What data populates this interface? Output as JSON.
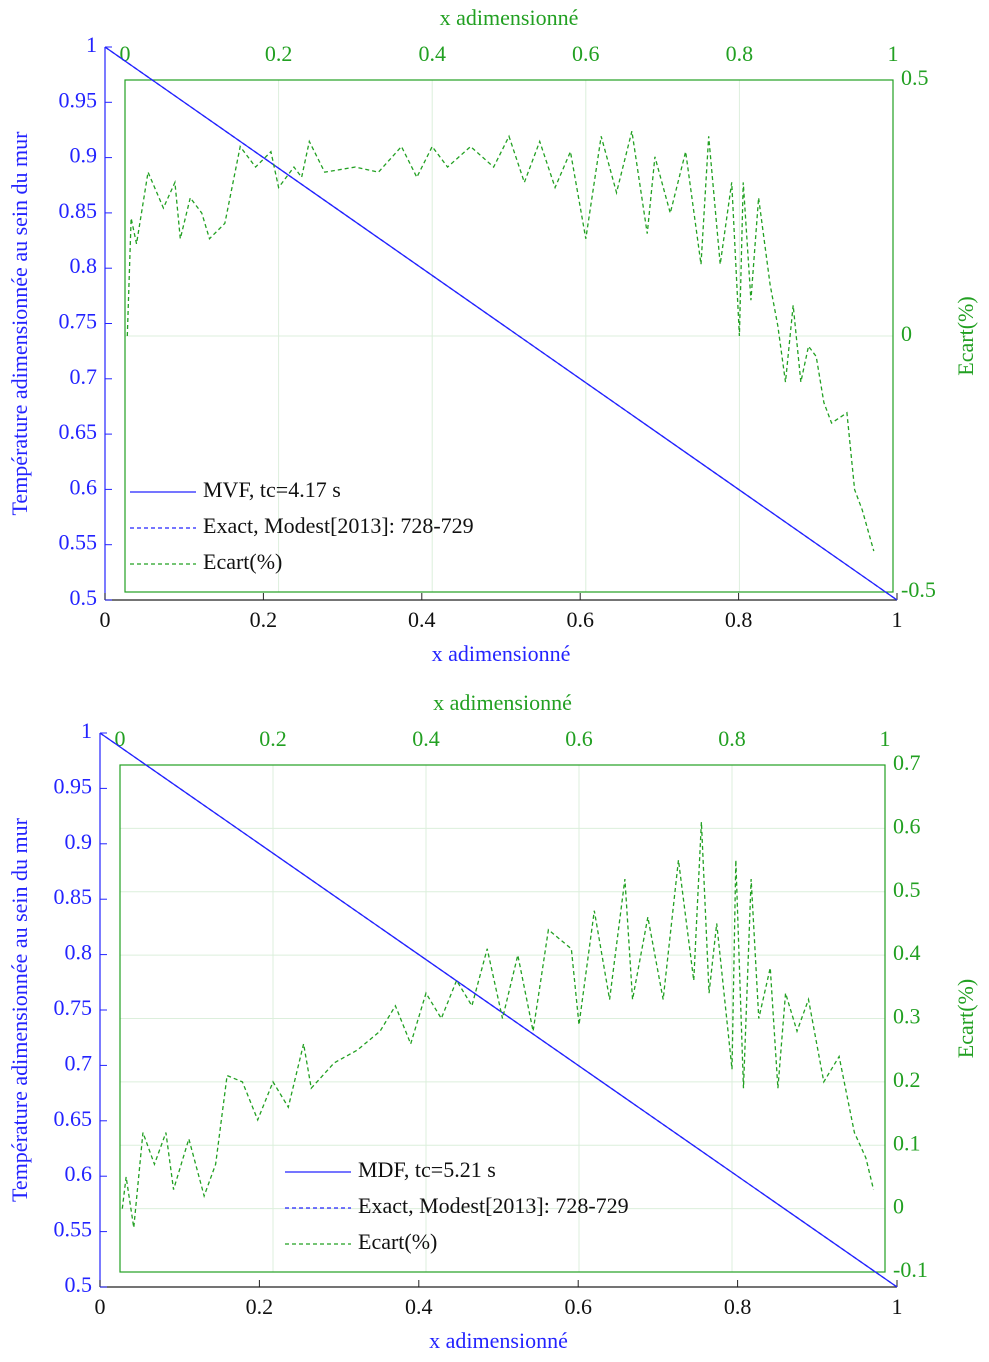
{
  "chart_data": [
    {
      "type": "line",
      "xlabel": "x adimensionné",
      "x2label": "x adimensionné",
      "ylabel": "Température adimensionnée au sein du mur",
      "y2label": "Ecart(%)",
      "xlim": [
        0,
        1
      ],
      "xticks": [
        0,
        0.2,
        0.4,
        0.6,
        0.8,
        1
      ],
      "x2lim": [
        0,
        1
      ],
      "x2ticks": [
        0,
        0.2,
        0.4,
        0.6,
        0.8,
        1
      ],
      "ylim": [
        0.5,
        1
      ],
      "yticks": [
        0.5,
        0.55,
        0.6,
        0.65,
        0.7,
        0.75,
        0.8,
        0.85,
        0.9,
        0.95,
        1
      ],
      "y2lim": [
        -0.5,
        0.5
      ],
      "y2ticks": [
        -0.5,
        0,
        0.5
      ],
      "ycolor": "#2323ff",
      "y2color": "#22a022",
      "grid": true,
      "legend": "lower left",
      "series": [
        {
          "name": "MVF, tc=4.17 s",
          "color": "#2323ff",
          "linestyle": "solid",
          "x": [
            0,
            1
          ],
          "values": [
            1,
            0.5
          ]
        },
        {
          "name": "Exact, Modest[2013]: 728-729",
          "color": "#2323ff",
          "linestyle": "dashed",
          "x": [
            0,
            1
          ],
          "values": [
            1,
            0.5
          ]
        },
        {
          "name": "Ecart(%)",
          "color": "#22a022",
          "linestyle": "dashed",
          "axis": "y2",
          "x": [
            0.003,
            0.008,
            0.015,
            0.03,
            0.05,
            0.065,
            0.072,
            0.085,
            0.1,
            0.11,
            0.13,
            0.15,
            0.17,
            0.19,
            0.2,
            0.22,
            0.23,
            0.24,
            0.26,
            0.3,
            0.33,
            0.36,
            0.38,
            0.4,
            0.42,
            0.45,
            0.48,
            0.5,
            0.52,
            0.54,
            0.56,
            0.58,
            0.6,
            0.62,
            0.64,
            0.66,
            0.68,
            0.69,
            0.71,
            0.73,
            0.75,
            0.76,
            0.775,
            0.79,
            0.8,
            0.805,
            0.815,
            0.825,
            0.84,
            0.85,
            0.86,
            0.87,
            0.88,
            0.89,
            0.9,
            0.91,
            0.92,
            0.94,
            0.95,
            0.96,
            0.975
          ],
          "values": [
            0,
            0.23,
            0.18,
            0.32,
            0.25,
            0.3,
            0.19,
            0.27,
            0.24,
            0.19,
            0.22,
            0.37,
            0.33,
            0.36,
            0.29,
            0.33,
            0.31,
            0.38,
            0.32,
            0.33,
            0.32,
            0.37,
            0.31,
            0.37,
            0.33,
            0.37,
            0.33,
            0.39,
            0.3,
            0.38,
            0.29,
            0.36,
            0.19,
            0.39,
            0.28,
            0.4,
            0.2,
            0.35,
            0.24,
            0.36,
            0.14,
            0.39,
            0.14,
            0.3,
            0,
            0.3,
            0.07,
            0.27,
            0.1,
            0.02,
            -0.09,
            0.06,
            -0.09,
            -0.02,
            -0.04,
            -0.13,
            -0.17,
            -0.15,
            -0.3,
            -0.34,
            -0.42
          ]
        }
      ]
    },
    {
      "type": "line",
      "xlabel": "x adimensionné",
      "x2label": "x adimensionné",
      "ylabel": "Température adimensionnée au sein du mur",
      "y2label": "Ecart(%)",
      "xlim": [
        0,
        1
      ],
      "xticks": [
        0,
        0.2,
        0.4,
        0.6,
        0.8,
        1
      ],
      "x2lim": [
        0,
        1
      ],
      "x2ticks": [
        0,
        0.2,
        0.4,
        0.6,
        0.8,
        1
      ],
      "ylim": [
        0.5,
        1
      ],
      "yticks": [
        0.5,
        0.55,
        0.6,
        0.65,
        0.7,
        0.75,
        0.8,
        0.85,
        0.9,
        0.95,
        1
      ],
      "y2lim": [
        -0.1,
        0.7
      ],
      "y2ticks": [
        -0.1,
        0,
        0.1,
        0.2,
        0.3,
        0.4,
        0.5,
        0.6,
        0.7
      ],
      "ycolor": "#2323ff",
      "y2color": "#22a022",
      "grid": true,
      "legend": "lower center",
      "series": [
        {
          "name": "MDF, tc=5.21 s",
          "color": "#2323ff",
          "linestyle": "solid",
          "x": [
            0,
            1
          ],
          "values": [
            1,
            0.5
          ]
        },
        {
          "name": "Exact, Modest[2013]: 728-729",
          "color": "#2323ff",
          "linestyle": "dashed",
          "x": [
            0,
            1
          ],
          "values": [
            1,
            0.5
          ]
        },
        {
          "name": "Ecart(%)",
          "color": "#22a022",
          "linestyle": "dashed",
          "axis": "y2",
          "x": [
            0.003,
            0.008,
            0.018,
            0.03,
            0.045,
            0.06,
            0.07,
            0.09,
            0.11,
            0.125,
            0.14,
            0.16,
            0.18,
            0.2,
            0.22,
            0.24,
            0.25,
            0.28,
            0.31,
            0.34,
            0.36,
            0.38,
            0.4,
            0.42,
            0.44,
            0.46,
            0.48,
            0.5,
            0.52,
            0.54,
            0.56,
            0.59,
            0.6,
            0.62,
            0.64,
            0.66,
            0.67,
            0.69,
            0.71,
            0.73,
            0.75,
            0.76,
            0.77,
            0.78,
            0.8,
            0.805,
            0.815,
            0.825,
            0.835,
            0.85,
            0.86,
            0.87,
            0.885,
            0.9,
            0.92,
            0.94,
            0.96,
            0.975,
            0.985
          ],
          "values": [
            0,
            0.05,
            -0.03,
            0.12,
            0.07,
            0.12,
            0.03,
            0.11,
            0.02,
            0.07,
            0.21,
            0.2,
            0.14,
            0.2,
            0.16,
            0.26,
            0.19,
            0.23,
            0.25,
            0.28,
            0.32,
            0.26,
            0.34,
            0.3,
            0.36,
            0.32,
            0.41,
            0.3,
            0.4,
            0.28,
            0.44,
            0.41,
            0.29,
            0.47,
            0.33,
            0.52,
            0.33,
            0.46,
            0.33,
            0.55,
            0.36,
            0.61,
            0.34,
            0.45,
            0.22,
            0.55,
            0.19,
            0.52,
            0.3,
            0.38,
            0.19,
            0.34,
            0.28,
            0.33,
            0.2,
            0.24,
            0.12,
            0.08,
            0.03
          ]
        }
      ]
    }
  ]
}
